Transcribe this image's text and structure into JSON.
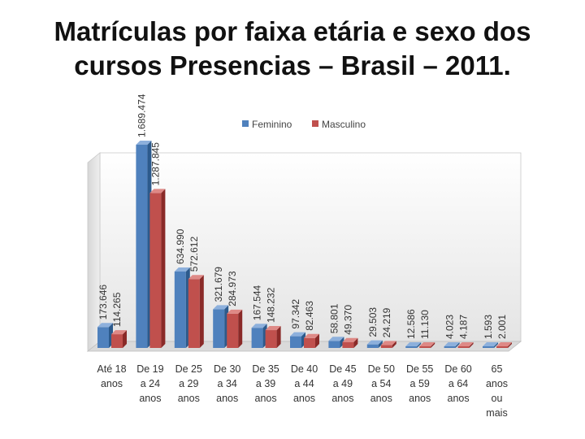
{
  "slide": {
    "title_line1": "Matrículas por faixa etária e sexo dos",
    "title_line2": "cursos Presencias – Brasil – 2011."
  },
  "chart_data": {
    "type": "bar",
    "title": "Matrículas por faixa etária e sexo dos cursos Presencias – Brasil – 2011.",
    "categories": [
      [
        "Até 18",
        "anos"
      ],
      [
        "De 19",
        "a 24",
        "anos"
      ],
      [
        "De 25",
        "a 29",
        "anos"
      ],
      [
        "De 30",
        "a 34",
        "anos"
      ],
      [
        "De 35",
        "a 39",
        "anos"
      ],
      [
        "De 40",
        "a 44",
        "anos"
      ],
      [
        "De 45",
        "a 49",
        "anos"
      ],
      [
        "De 50",
        "a 54",
        "anos"
      ],
      [
        "De 55",
        "a 59",
        "anos"
      ],
      [
        "De 60",
        "a 64",
        "anos"
      ],
      [
        "65",
        "anos",
        "ou",
        "mais"
      ]
    ],
    "series": [
      {
        "name": "Feminino",
        "color": "#4F81BD",
        "values": [
          173646,
          1689474,
          634990,
          321679,
          167544,
          97342,
          58801,
          29503,
          12586,
          4023,
          1593
        ],
        "labels": [
          "173.646",
          "1.689.474",
          "634.990",
          "321.679",
          "167.544",
          "97.342",
          "58.801",
          "29.503",
          "12.586",
          "4.023",
          "1.593"
        ]
      },
      {
        "name": "Masculino",
        "color": "#C0504D",
        "values": [
          114265,
          1287845,
          572612,
          284973,
          148232,
          82463,
          49370,
          24219,
          11130,
          4187,
          2001
        ],
        "labels": [
          "114.265",
          "1.287.845",
          "572.612",
          "284.973",
          "148.232",
          "82.463",
          "49.370",
          "24.219",
          "11.130",
          "4.187",
          "2.001"
        ]
      }
    ],
    "ylim": [
      0,
      2000000
    ],
    "xlabel": "",
    "ylabel": "",
    "legend_position": "top",
    "grid": false,
    "style": "3d-column"
  }
}
